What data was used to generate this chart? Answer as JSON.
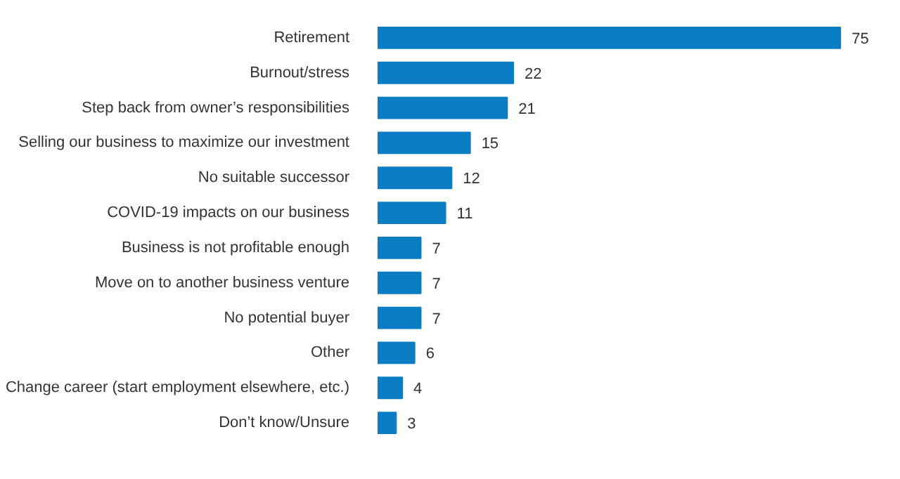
{
  "chart_data": {
    "type": "bar",
    "orientation": "horizontal",
    "categories": [
      "Retirement",
      "Burnout/stress",
      "Step back from owner’s responsibilities",
      "Selling our business to maximize our investment",
      "No suitable successor",
      "COVID-19 impacts on our business",
      "Business is not profitable enough",
      "Move on to another business venture",
      "No potential buyer",
      "Other",
      "Change career (start employment elsewhere, etc.)",
      "Don’t know/Unsure"
    ],
    "values": [
      75,
      22,
      21,
      15,
      12,
      11,
      7,
      7,
      7,
      6,
      4,
      3
    ],
    "color": "#0b7dc3",
    "data_labels": true,
    "grid": false
  }
}
